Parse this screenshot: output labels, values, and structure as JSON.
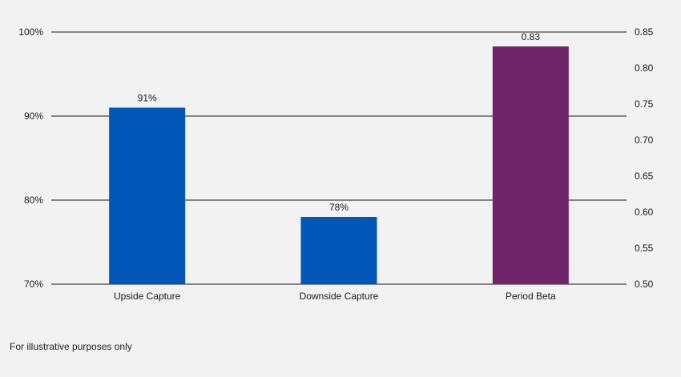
{
  "chart_data": {
    "type": "bar",
    "categories": [
      "Upside Capture",
      "Downside Capture",
      "Period Beta"
    ],
    "series": [
      {
        "axis": "left",
        "values": [
          91,
          78,
          null
        ],
        "data_labels": [
          "91%",
          "78%",
          null
        ],
        "color": "#0057b8"
      },
      {
        "axis": "right",
        "values": [
          null,
          null,
          0.83
        ],
        "data_labels": [
          null,
          null,
          "0.83"
        ],
        "color": "#70256b"
      }
    ],
    "y_left": {
      "range": [
        70,
        100
      ],
      "ticks": [
        70,
        80,
        90,
        100
      ],
      "tick_labels": [
        "70%",
        "80%",
        "90%",
        "100%"
      ]
    },
    "y_right": {
      "range": [
        0.5,
        0.85
      ],
      "ticks": [
        0.5,
        0.55,
        0.6,
        0.65,
        0.7,
        0.75,
        0.8,
        0.85
      ],
      "tick_labels": [
        "0.50",
        "0.55",
        "0.60",
        "0.65",
        "0.70",
        "0.75",
        "0.80",
        "0.85"
      ]
    },
    "grid": true,
    "legend": "none"
  },
  "footnote": "For illustrative purposes only"
}
